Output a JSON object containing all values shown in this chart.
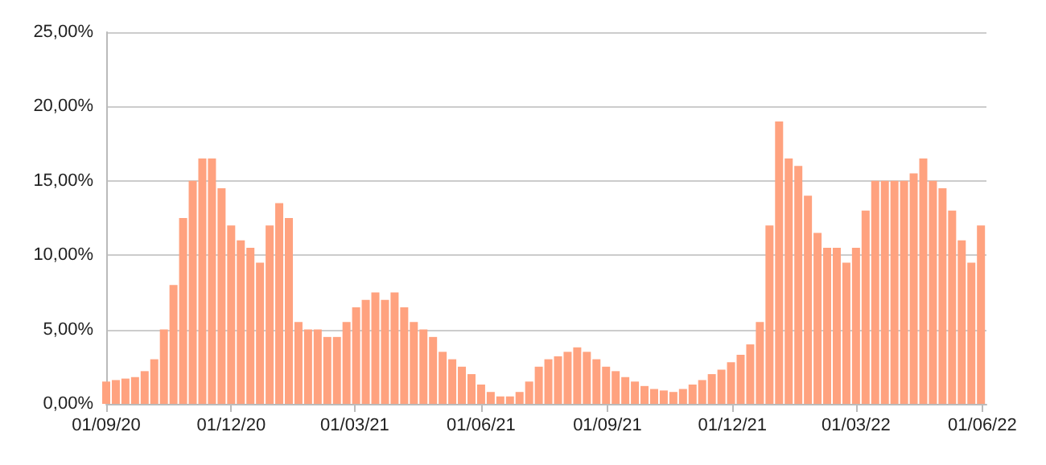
{
  "chart_data": {
    "type": "bar",
    "color": "#ffa27f",
    "x": [
      "2020-09-01",
      "2020-09-08",
      "2020-09-15",
      "2020-09-22",
      "2020-09-29",
      "2020-10-06",
      "2020-10-13",
      "2020-10-20",
      "2020-10-27",
      "2020-11-03",
      "2020-11-10",
      "2020-11-17",
      "2020-11-24",
      "2020-12-01",
      "2020-12-08",
      "2020-12-15",
      "2020-12-22",
      "2020-12-29",
      "2021-01-05",
      "2021-01-12",
      "2021-01-19",
      "2021-01-26",
      "2021-02-02",
      "2021-02-09",
      "2021-02-16",
      "2021-02-23",
      "2021-03-02",
      "2021-03-09",
      "2021-03-16",
      "2021-03-23",
      "2021-03-30",
      "2021-04-06",
      "2021-04-13",
      "2021-04-20",
      "2021-04-27",
      "2021-05-04",
      "2021-05-11",
      "2021-05-18",
      "2021-05-25",
      "2021-06-01",
      "2021-06-08",
      "2021-06-15",
      "2021-06-22",
      "2021-06-29",
      "2021-07-06",
      "2021-07-13",
      "2021-07-20",
      "2021-07-27",
      "2021-08-03",
      "2021-08-10",
      "2021-08-17",
      "2021-08-24",
      "2021-08-31",
      "2021-09-07",
      "2021-09-14",
      "2021-09-21",
      "2021-09-28",
      "2021-10-05",
      "2021-10-12",
      "2021-10-19",
      "2021-10-26",
      "2021-11-02",
      "2021-11-09",
      "2021-11-16",
      "2021-11-23",
      "2021-11-30",
      "2021-12-07",
      "2021-12-14",
      "2021-12-21",
      "2021-12-28",
      "2022-01-04",
      "2022-01-11",
      "2022-01-18",
      "2022-01-25",
      "2022-02-01",
      "2022-02-08",
      "2022-02-15",
      "2022-02-22",
      "2022-03-01",
      "2022-03-08",
      "2022-03-15",
      "2022-03-22",
      "2022-03-29",
      "2022-04-05",
      "2022-04-12",
      "2022-04-19",
      "2022-04-26",
      "2022-05-03",
      "2022-05-10",
      "2022-05-17",
      "2022-05-24",
      "2022-05-31"
    ],
    "values": [
      1.5,
      1.6,
      1.7,
      1.8,
      2.2,
      3.0,
      5.0,
      8.0,
      12.5,
      15.0,
      16.5,
      16.5,
      14.5,
      12.0,
      11.0,
      10.5,
      9.5,
      12.0,
      13.5,
      12.5,
      5.5,
      5.0,
      5.0,
      4.5,
      4.5,
      5.5,
      6.5,
      7.0,
      7.5,
      7.0,
      7.5,
      6.5,
      5.5,
      5.0,
      4.5,
      3.5,
      3.0,
      2.5,
      2.0,
      1.3,
      0.8,
      0.5,
      0.5,
      0.8,
      1.5,
      2.5,
      3.0,
      3.2,
      3.5,
      3.8,
      3.5,
      3.0,
      2.5,
      2.2,
      1.8,
      1.5,
      1.2,
      1.0,
      0.9,
      0.8,
      1.0,
      1.3,
      1.6,
      2.0,
      2.3,
      2.8,
      3.3,
      4.0,
      5.5,
      12.0,
      19.0,
      16.5,
      16.0,
      14.0,
      11.5,
      10.5,
      10.5,
      9.5,
      10.5,
      13.0,
      15.0,
      15.0,
      15.0,
      15.0,
      15.5,
      16.5,
      15.0,
      14.5,
      13.0,
      11.0,
      9.5,
      12.0
    ],
    "xlim": [
      "2020-09-01",
      "2022-06-04"
    ],
    "xticks": [
      {
        "value": "2020-09-01",
        "label": "01/09/20"
      },
      {
        "value": "2020-12-01",
        "label": "01/12/20"
      },
      {
        "value": "2021-03-01",
        "label": "01/03/21"
      },
      {
        "value": "2021-06-01",
        "label": "01/06/21"
      },
      {
        "value": "2021-09-01",
        "label": "01/09/21"
      },
      {
        "value": "2021-12-01",
        "label": "01/12/21"
      },
      {
        "value": "2022-03-01",
        "label": "01/03/22"
      },
      {
        "value": "2022-06-01",
        "label": "01/06/22"
      }
    ],
    "ylim": [
      0,
      25
    ],
    "yticks": [
      {
        "value": 0,
        "label": "0,00%"
      },
      {
        "value": 5,
        "label": "5,00%"
      },
      {
        "value": 10,
        "label": "10,00%"
      },
      {
        "value": 15,
        "label": "15,00%"
      },
      {
        "value": 20,
        "label": "20,00%"
      },
      {
        "value": 25,
        "label": "25,00%"
      }
    ],
    "grid": "y"
  }
}
